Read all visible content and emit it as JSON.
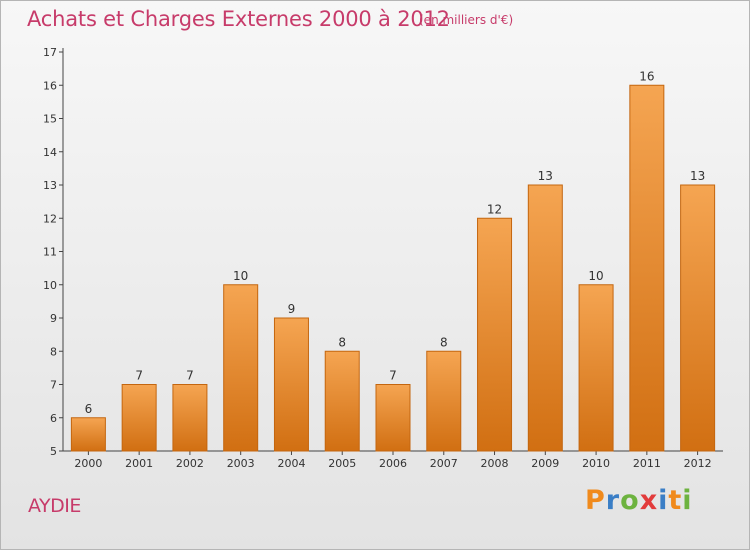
{
  "header": {
    "title": "Achats et Charges Externes 2000 à 2012",
    "unit": "(en milliers d'€)"
  },
  "footer": {
    "commune": "AYDIE",
    "brand_letters": [
      "P",
      "r",
      "o",
      "x",
      "i",
      "t",
      "i"
    ],
    "brand_colors": [
      "#f08a1c",
      "#3a7ec6",
      "#6db33f",
      "#e23b3b",
      "#3a7ec6",
      "#f08a1c",
      "#6db33f"
    ]
  },
  "colors": {
    "bar_top": "#f5a552",
    "bar_bottom": "#d16f12",
    "bar_edge": "#c4660f",
    "text": "#333333"
  },
  "chart_data": {
    "type": "bar",
    "categories": [
      "2000",
      "2001",
      "2002",
      "2003",
      "2004",
      "2005",
      "2006",
      "2007",
      "2008",
      "2009",
      "2010",
      "2011",
      "2012"
    ],
    "values": [
      6,
      7,
      7,
      10,
      9,
      8,
      7,
      8,
      12,
      13,
      10,
      16,
      13
    ],
    "data_labels": [
      "6",
      "7",
      "7",
      "10",
      "9",
      "8",
      "7",
      "8",
      "12",
      "13",
      "10",
      "16",
      "13"
    ],
    "yticks": [
      "5",
      "6",
      "7",
      "8",
      "9",
      "10",
      "11",
      "12",
      "13",
      "14",
      "15",
      "16",
      "17"
    ],
    "ylim": [
      5,
      17
    ],
    "grid": false,
    "legend": "none"
  }
}
